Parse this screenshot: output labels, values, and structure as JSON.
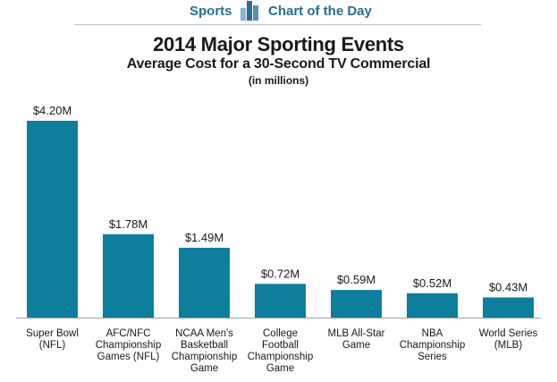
{
  "header": {
    "section_label": "Sports",
    "series_label": "Chart of the Day"
  },
  "chart_data": {
    "type": "bar",
    "title": "2014 Major Sporting Events",
    "subtitle": "Average Cost for a 30-Second TV Commercial",
    "unit_note": "(in millions)",
    "categories": [
      [
        "Super Bowl",
        "(NFL)"
      ],
      [
        "AFC/NFC",
        "Championship",
        "Games (NFL)"
      ],
      [
        "NCAA Men's",
        "Basketball",
        "Championship",
        "Game"
      ],
      [
        "College",
        "Football",
        "Championship",
        "Game"
      ],
      [
        "MLB All-Star",
        "Game"
      ],
      [
        "NBA",
        "Championship",
        "Series"
      ],
      [
        "World Series",
        "(MLB)"
      ]
    ],
    "values": [
      4.2,
      1.78,
      1.49,
      0.72,
      0.59,
      0.52,
      0.43
    ],
    "value_labels": [
      "$4.20M",
      "$1.78M",
      "$1.49M",
      "$0.72M",
      "$0.59M",
      "$0.52M",
      "$0.43M"
    ],
    "ylim": [
      0,
      4.2
    ],
    "bar_color": "#0d7f9c",
    "axis_color": "#9aa4aa",
    "grid": false,
    "legend": "none"
  }
}
